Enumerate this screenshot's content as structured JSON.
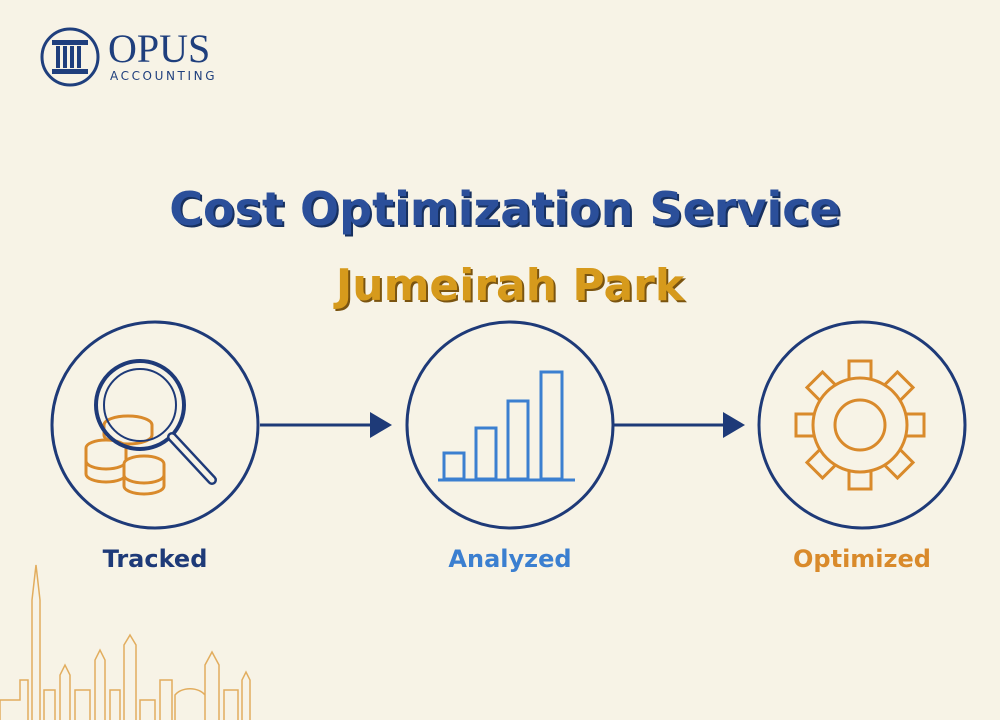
{
  "logo": {
    "name": "OPUS",
    "subtitle": "ACCOUNTING"
  },
  "header": {
    "title": "Cost Optimization Service",
    "subtitle": "Jumeirah Park"
  },
  "steps": [
    {
      "label": "Tracked"
    },
    {
      "label": "Analyzed"
    },
    {
      "label": "Optimized"
    }
  ]
}
